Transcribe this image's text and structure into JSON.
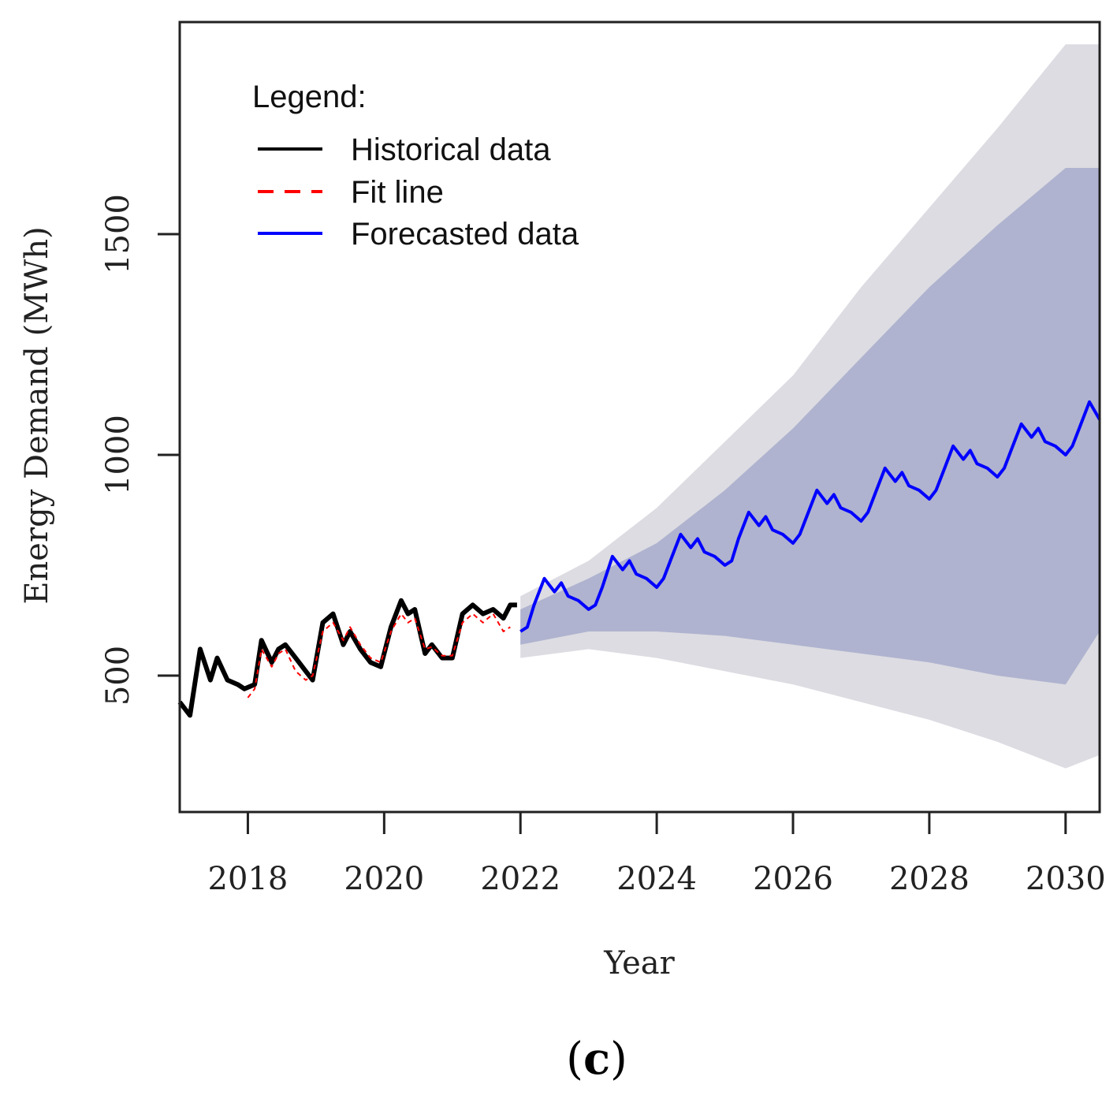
{
  "panel_label": {
    "open": "(",
    "letter": "c",
    "close": ")"
  },
  "colors": {
    "historical": "#000000",
    "fit": "#ff0000",
    "forecast": "#0000ff",
    "band95": "#dcdce2",
    "band80": "#afb3cf"
  },
  "chart_data": {
    "type": "line",
    "title": "",
    "xlabel": "Year",
    "ylabel": "Energy Demand (MWh)",
    "xlim": [
      2017.0,
      2030.5
    ],
    "ylim": [
      200,
      2000
    ],
    "xticks": [
      2018,
      2020,
      2022,
      2024,
      2026,
      2028,
      2030
    ],
    "yticks": [
      500,
      1000,
      1500
    ],
    "grid": false,
    "legend": {
      "title": "Legend:",
      "position": "top-left",
      "entries": [
        {
          "label": "Historical data",
          "series": "historical"
        },
        {
          "label": "Fit line",
          "series": "fit"
        },
        {
          "label": "Forecasted data",
          "series": "forecast"
        }
      ]
    },
    "series": [
      {
        "name": "Historical data",
        "key": "historical",
        "style": "solid",
        "x": [
          2017.0,
          2017.15,
          2017.3,
          2017.45,
          2017.55,
          2017.7,
          2017.85,
          2017.95,
          2018.1,
          2018.2,
          2018.35,
          2018.45,
          2018.55,
          2018.7,
          2018.85,
          2018.95,
          2019.1,
          2019.25,
          2019.4,
          2019.5,
          2019.65,
          2019.8,
          2019.95,
          2020.1,
          2020.25,
          2020.35,
          2020.45,
          2020.6,
          2020.7,
          2020.85,
          2021.0,
          2021.15,
          2021.3,
          2021.45,
          2021.6,
          2021.75,
          2021.85,
          2021.95
        ],
        "values": [
          440,
          410,
          560,
          490,
          540,
          490,
          480,
          470,
          480,
          580,
          530,
          560,
          570,
          540,
          510,
          490,
          620,
          640,
          570,
          600,
          560,
          530,
          520,
          610,
          670,
          640,
          650,
          550,
          570,
          540,
          540,
          640,
          660,
          640,
          650,
          630,
          660,
          660
        ]
      },
      {
        "name": "Fit line",
        "key": "fit",
        "style": "dashed",
        "x": [
          2018.0,
          2018.1,
          2018.2,
          2018.35,
          2018.45,
          2018.55,
          2018.7,
          2018.85,
          2018.95,
          2019.1,
          2019.25,
          2019.4,
          2019.5,
          2019.65,
          2019.8,
          2019.95,
          2020.1,
          2020.25,
          2020.35,
          2020.45,
          2020.6,
          2020.7,
          2020.85,
          2021.0,
          2021.15,
          2021.3,
          2021.45,
          2021.6,
          2021.75,
          2021.85
        ],
        "values": [
          450,
          470,
          560,
          520,
          550,
          560,
          510,
          490,
          500,
          600,
          620,
          580,
          610,
          570,
          540,
          530,
          600,
          640,
          620,
          630,
          560,
          565,
          545,
          545,
          620,
          640,
          620,
          640,
          600,
          610
        ]
      },
      {
        "name": "Forecasted data",
        "key": "forecast",
        "style": "solid",
        "x": [
          2022.0,
          2022.1,
          2022.2,
          2022.35,
          2022.5,
          2022.6,
          2022.7,
          2022.85,
          2023.0,
          2023.1,
          2023.2,
          2023.35,
          2023.5,
          2023.6,
          2023.7,
          2023.85,
          2024.0,
          2024.1,
          2024.2,
          2024.35,
          2024.5,
          2024.6,
          2024.7,
          2024.85,
          2025.0,
          2025.1,
          2025.2,
          2025.35,
          2025.5,
          2025.6,
          2025.7,
          2025.85,
          2026.0,
          2026.1,
          2026.2,
          2026.35,
          2026.5,
          2026.6,
          2026.7,
          2026.85,
          2027.0,
          2027.1,
          2027.2,
          2027.35,
          2027.5,
          2027.6,
          2027.7,
          2027.85,
          2028.0,
          2028.1,
          2028.2,
          2028.35,
          2028.5,
          2028.6,
          2028.7,
          2028.85,
          2029.0,
          2029.1,
          2029.2,
          2029.35,
          2029.5,
          2029.6,
          2029.7,
          2029.85,
          2030.0,
          2030.1,
          2030.2,
          2030.35,
          2030.5
        ],
        "values": [
          600,
          610,
          660,
          720,
          690,
          710,
          680,
          670,
          650,
          660,
          700,
          770,
          740,
          760,
          730,
          720,
          700,
          720,
          760,
          820,
          790,
          810,
          780,
          770,
          750,
          760,
          810,
          870,
          840,
          860,
          830,
          820,
          800,
          820,
          860,
          920,
          890,
          910,
          880,
          870,
          850,
          870,
          910,
          970,
          940,
          960,
          930,
          920,
          900,
          920,
          960,
          1020,
          990,
          1010,
          980,
          970,
          950,
          970,
          1010,
          1070,
          1040,
          1060,
          1030,
          1020,
          1000,
          1020,
          1060,
          1120,
          1080
        ]
      }
    ],
    "bands": [
      {
        "name": "95% interval",
        "key": "band95",
        "x": [
          2022.0,
          2023.0,
          2024.0,
          2025.0,
          2026.0,
          2027.0,
          2028.0,
          2029.0,
          2030.0,
          2030.5
        ],
        "lower": [
          540,
          560,
          540,
          510,
          480,
          440,
          400,
          350,
          290,
          320
        ],
        "upper": [
          680,
          760,
          880,
          1030,
          1180,
          1380,
          1560,
          1740,
          1930,
          1930
        ]
      },
      {
        "name": "80% interval",
        "key": "band80",
        "x": [
          2022.0,
          2023.0,
          2024.0,
          2025.0,
          2026.0,
          2027.0,
          2028.0,
          2029.0,
          2030.0,
          2030.5
        ],
        "lower": [
          570,
          600,
          600,
          590,
          570,
          550,
          530,
          500,
          480,
          600
        ],
        "upper": [
          650,
          720,
          800,
          920,
          1060,
          1220,
          1380,
          1520,
          1650,
          1650
        ]
      }
    ]
  }
}
